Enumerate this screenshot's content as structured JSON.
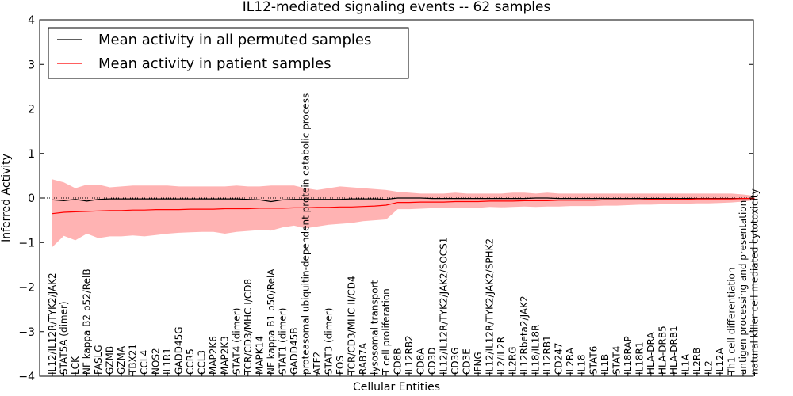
{
  "chart_data": {
    "type": "line",
    "title": "IL12-mediated signaling events -- 62 samples",
    "xlabel": "Cellular Entities",
    "ylabel": "Inferred Activity",
    "ylim": [
      -4,
      4
    ],
    "yticks": [
      -4,
      -3,
      -2,
      -1,
      0,
      1,
      2,
      3,
      4
    ],
    "legend": {
      "placement": "top-left",
      "entries": [
        {
          "name": "Mean activity in all permuted samples",
          "color": "#000000"
        },
        {
          "name": "Mean activity in patient samples",
          "color": "#ff0000"
        }
      ]
    },
    "colors": {
      "permuted": "#000000",
      "patient": "#ff0000",
      "band": "#ff9999"
    },
    "categories": [
      "IL12/IL12R/TYK2/JAK2",
      "STAT5A (dimer)",
      "LCK",
      "NF kappa B2 p52/RelB",
      "FASLG",
      "GZMB",
      "GZMA",
      "TBX21",
      "CCL4",
      "NOS2",
      "IL1R1",
      "GADD45G",
      "CCR5",
      "CCL3",
      "MAP2K6",
      "MAP2K3",
      "STAT4 (dimer)",
      "TCR/CD3/MHC I/CD8",
      "MAPK14",
      "NF kappa B1 p50/RelA",
      "STAT1 (dimer)",
      "GADD45B",
      "proteasomal ubiquitin-dependent protein catabolic process",
      "ATF2",
      "STAT3 (dimer)",
      "FOS",
      "TCR/CD3/MHC II/CD4",
      "RAB7A",
      "lysosomal transport",
      "T cell proliferation",
      "CD8B",
      "IL12RB2",
      "CD8A",
      "CD3D",
      "IL12/IL12R/TYK2/JAK2/SOCS1",
      "CD3G",
      "CD3E",
      "IFNG",
      "IL12/IL12R/TYK2/JAK2/SPHK2",
      "IL2/IL2R",
      "IL2RG",
      "IL12Rbeta2/JAK2",
      "IL18/IL18R",
      "IL12RB1",
      "CD247",
      "IL2RA",
      "IL18",
      "STAT6",
      "IL1B",
      "STAT4",
      "IL18RAP",
      "IL18R1",
      "HLA-DRA",
      "HLA-DRB5",
      "HLA-DRB1",
      "IL1A",
      "IL2RB",
      "IL2",
      "IL12A",
      "Th1 cell differentiation",
      "antigen processing and presentation",
      "natural killer cell mediated cytotoxicity"
    ],
    "series": [
      {
        "name": "Mean activity in all permuted samples",
        "values": [
          -0.04,
          -0.06,
          -0.03,
          -0.07,
          -0.03,
          -0.02,
          -0.02,
          -0.02,
          -0.02,
          -0.02,
          -0.02,
          -0.02,
          -0.02,
          -0.02,
          -0.02,
          -0.02,
          -0.02,
          -0.03,
          -0.04,
          -0.08,
          -0.04,
          -0.03,
          -0.03,
          -0.03,
          -0.03,
          -0.03,
          -0.02,
          -0.02,
          -0.02,
          -0.03,
          0.0,
          0.0,
          0.0,
          -0.01,
          -0.01,
          -0.01,
          -0.01,
          -0.01,
          -0.01,
          -0.01,
          -0.01,
          -0.01,
          0.0,
          0.0,
          -0.01,
          -0.01,
          -0.01,
          -0.01,
          -0.01,
          -0.01,
          -0.01,
          -0.01,
          -0.01,
          -0.01,
          -0.01,
          -0.01,
          -0.01,
          -0.01,
          -0.01,
          -0.01,
          -0.01,
          -0.01
        ]
      },
      {
        "name": "Mean activity in patient samples",
        "values": [
          -0.35,
          -0.32,
          -0.31,
          -0.3,
          -0.29,
          -0.28,
          -0.28,
          -0.27,
          -0.27,
          -0.26,
          -0.26,
          -0.26,
          -0.25,
          -0.25,
          -0.25,
          -0.24,
          -0.24,
          -0.24,
          -0.23,
          -0.23,
          -0.23,
          -0.22,
          -0.22,
          -0.21,
          -0.21,
          -0.2,
          -0.2,
          -0.19,
          -0.18,
          -0.16,
          -0.1,
          -0.1,
          -0.09,
          -0.09,
          -0.09,
          -0.08,
          -0.08,
          -0.08,
          -0.07,
          -0.07,
          -0.07,
          -0.06,
          -0.06,
          -0.06,
          -0.05,
          -0.05,
          -0.05,
          -0.05,
          -0.04,
          -0.04,
          -0.04,
          -0.04,
          -0.03,
          -0.03,
          -0.03,
          -0.03,
          -0.02,
          -0.02,
          -0.02,
          -0.02,
          -0.01,
          -0.01
        ]
      }
    ],
    "band": {
      "upper": [
        0.42,
        0.35,
        0.22,
        0.3,
        0.3,
        0.24,
        0.26,
        0.28,
        0.28,
        0.28,
        0.28,
        0.26,
        0.26,
        0.26,
        0.26,
        0.26,
        0.28,
        0.26,
        0.26,
        0.28,
        0.28,
        0.28,
        0.22,
        0.18,
        0.22,
        0.26,
        0.24,
        0.22,
        0.2,
        0.18,
        0.14,
        0.12,
        0.1,
        0.1,
        0.1,
        0.12,
        0.1,
        0.1,
        0.1,
        0.1,
        0.12,
        0.12,
        0.1,
        0.12,
        0.1,
        0.1,
        0.1,
        0.1,
        0.1,
        0.1,
        0.1,
        0.1,
        0.1,
        0.1,
        0.1,
        0.1,
        0.1,
        0.1,
        0.1,
        0.1,
        0.08,
        0.05
      ],
      "lower": [
        -1.1,
        -0.85,
        -0.95,
        -0.8,
        -0.9,
        -0.86,
        -0.86,
        -0.84,
        -0.86,
        -0.83,
        -0.8,
        -0.78,
        -0.77,
        -0.76,
        -0.76,
        -0.8,
        -0.76,
        -0.74,
        -0.72,
        -0.73,
        -0.66,
        -0.62,
        -0.68,
        -0.64,
        -0.6,
        -0.58,
        -0.56,
        -0.52,
        -0.5,
        -0.48,
        -0.25,
        -0.25,
        -0.24,
        -0.23,
        -0.22,
        -0.22,
        -0.22,
        -0.22,
        -0.2,
        -0.21,
        -0.2,
        -0.19,
        -0.2,
        -0.19,
        -0.19,
        -0.18,
        -0.18,
        -0.18,
        -0.17,
        -0.17,
        -0.16,
        -0.15,
        -0.15,
        -0.14,
        -0.14,
        -0.13,
        -0.12,
        -0.12,
        -0.11,
        -0.1,
        -0.08,
        -0.05
      ]
    }
  }
}
